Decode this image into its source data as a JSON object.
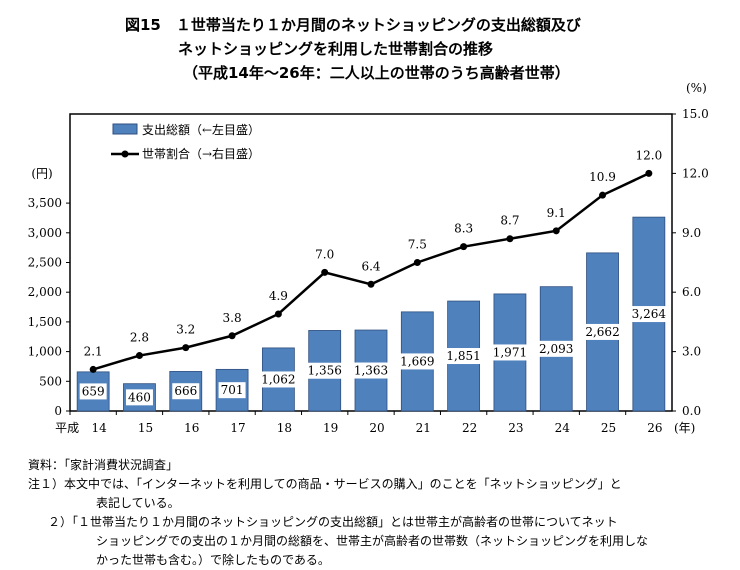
{
  "chart_data": {
    "type": "bar+line",
    "title": "図15　１世帯当たり１か月間のネットショッピングの支出総額及び",
    "title_line2": "ネットショッピングを利用した世帯割合の推移",
    "subtitle": "（平成14年～26年：二人以上の世帯のうち高齢者世帯）",
    "categories": [
      "14",
      "15",
      "16",
      "17",
      "18",
      "19",
      "20",
      "21",
      "22",
      "23",
      "24",
      "25",
      "26"
    ],
    "x_prefix": "平成",
    "x_suffix": "(年)",
    "left_axis": {
      "label": "(円)",
      "ylim": [
        0,
        5000
      ],
      "ticks": [
        0,
        500,
        1000,
        1500,
        2000,
        2500,
        3000,
        3500
      ],
      "tick_labels": [
        "0",
        "500",
        "1,000",
        "1,500",
        "2,000",
        "2,500",
        "3,000",
        "3,500"
      ]
    },
    "right_axis": {
      "label": "(%)",
      "ylim": [
        0,
        15
      ],
      "ticks": [
        0,
        3,
        6,
        9,
        12,
        15
      ],
      "tick_labels": [
        "0.0",
        "3.0",
        "6.0",
        "9.0",
        "12.0",
        "15.0"
      ]
    },
    "series": [
      {
        "name": "支出総額（←左目盛）",
        "type": "bar",
        "axis": "left",
        "color": "#4f81bd",
        "values": [
          659,
          460,
          666,
          701,
          1062,
          1356,
          1363,
          1669,
          1851,
          1971,
          2093,
          2662,
          3264
        ],
        "labels": [
          "659",
          "460",
          "666",
          "701",
          "1,062",
          "1,356",
          "1,363",
          "1,669",
          "1,851",
          "1,971",
          "2,093",
          "2,662",
          "3,264"
        ]
      },
      {
        "name": "世帯割合（→右目盛）",
        "type": "line",
        "axis": "right",
        "color": "#000000",
        "values": [
          2.1,
          2.8,
          3.2,
          3.8,
          4.9,
          7.0,
          6.4,
          7.5,
          8.3,
          8.7,
          9.1,
          10.9,
          12.0
        ],
        "labels": [
          "2.1",
          "2.8",
          "3.2",
          "3.8",
          "4.9",
          "7.0",
          "6.4",
          "7.5",
          "8.3",
          "8.7",
          "9.1",
          "10.9",
          "12.0"
        ]
      }
    ],
    "legend_position": "top-left"
  },
  "notes": {
    "source": "資料：「家計消費状況調査」",
    "note1a": "注１）本文中では、「インターネットを利用しての商品・サービスの購入」のことを「ネットショッピング」と",
    "note1b": "表記している。",
    "note2a": "２）「１世帯当たり１か月間のネットショッピングの支出総額」とは世帯主が高齢者の世帯についてネット",
    "note2b": "ショッピングでの支出の１か月間の総額を、世帯主が高齢者の世帯数（ネットショッピングを利用しな",
    "note2c": "かった世帯も含む。）で除したものである。"
  }
}
